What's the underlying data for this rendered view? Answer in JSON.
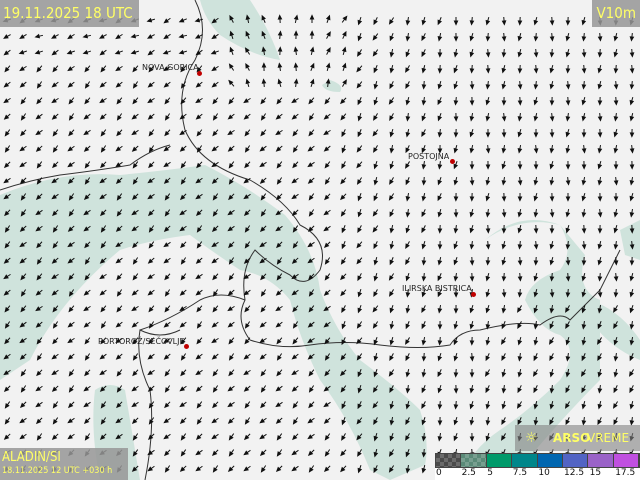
{
  "header": {
    "valid_time": "19.11.2025 18 UTC",
    "variable": "V10m"
  },
  "model": {
    "name": "ALADIN/SI",
    "run": "18.11.2025 12 UTC +030 h"
  },
  "logo": {
    "icon": "sun-icon",
    "brand_bold": "ARSO",
    "brand_light": "VREME"
  },
  "cities": [
    {
      "name": "NOVA GORICA"
    },
    {
      "name": "POSTOJNA"
    },
    {
      "name": "ILIRSKA BISTRICA"
    },
    {
      "name": "PORTOROŽ/SEČOVLJE"
    }
  ],
  "legend": {
    "labels": [
      "0",
      "2.5",
      "5",
      "7.5",
      "10",
      "12.5",
      "15",
      "17.5"
    ],
    "colors": [
      "#4a4a4a",
      "#5a8a78",
      "#009a6a",
      "#00868a",
      "#0066b0",
      "#5264c4",
      "#9a62c8",
      "#c050e0"
    ]
  },
  "colors": {
    "land": "#f2f2f2",
    "low_wind_shade": "#cfe3dc",
    "border": "#333333",
    "city_dot": "#c00000",
    "text_highlight": "#ffff66"
  }
}
